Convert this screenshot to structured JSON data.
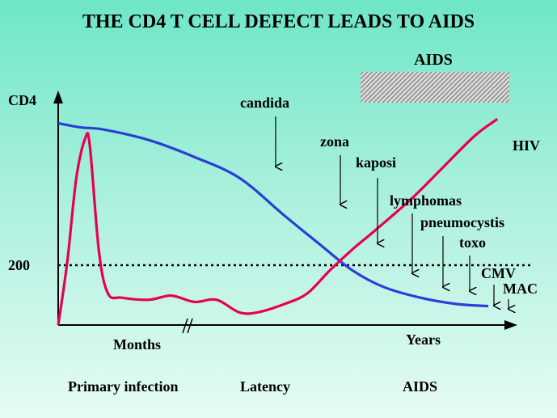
{
  "title": "THE CD4 T CELL DEFECT LEADS TO AIDS",
  "aids_banner_label": "AIDS",
  "chart_data": {
    "type": "line",
    "ylabel": "CD4",
    "threshold_label": "200",
    "x_segment_labels": {
      "months": "Months",
      "years": "Years"
    },
    "phases": [
      "Primary infection",
      "Latency",
      "AIDS"
    ],
    "series": [
      {
        "name": "",
        "color": "#2b3fd6",
        "x": [
          0,
          5,
          10,
          20,
          30,
          40,
          50,
          58,
          65,
          72,
          80,
          88,
          95
        ],
        "y": [
          960,
          940,
          930,
          880,
          800,
          700,
          520,
          380,
          260,
          180,
          130,
          100,
          90
        ]
      },
      {
        "name": "HIV",
        "color": "#e8004e",
        "x": [
          0,
          2,
          4,
          6,
          7,
          9,
          11,
          14,
          20,
          25,
          30,
          35,
          40,
          44,
          50,
          55,
          60,
          65,
          70,
          78,
          85,
          92,
          97
        ],
        "y": [
          0,
          300,
          700,
          890,
          850,
          350,
          150,
          130,
          120,
          140,
          110,
          120,
          60,
          60,
          100,
          150,
          260,
          360,
          450,
          600,
          750,
          900,
          980
        ]
      }
    ],
    "annotations": [
      "candida",
      "zona",
      "kaposi",
      "lymphomas",
      "pneumocystis",
      "toxo",
      "CMV",
      "MAC"
    ]
  }
}
